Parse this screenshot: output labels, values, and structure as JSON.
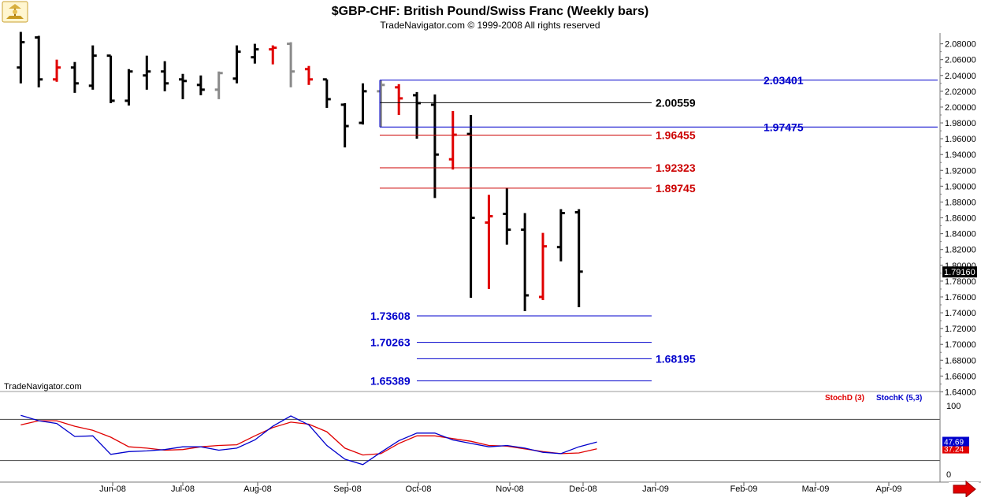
{
  "header": {
    "title": "$GBP-CHF:  British Pound/Swiss Franc  (Weekly bars)",
    "copyright": "TradeNavigator.com © 1999-2008 All rights reserved",
    "watermark": "TradeNavigator.com"
  },
  "colors": {
    "up_bar": "#000000",
    "down_bar": "#e00000",
    "neutral_bar": "#8a8a8a",
    "blue_level": "#0000cc",
    "red_level": "#cc0000",
    "black_level": "#000000",
    "stoch_d": "#e00000",
    "stoch_k": "#0000cc",
    "grid": "#e8e8e8"
  },
  "chart_data": [
    {
      "type": "ohlc",
      "title": "$GBP-CHF:  British Pound/Swiss Franc  (Weekly bars)",
      "ylim": [
        1.636,
        2.098
      ],
      "y_ticks": [
        "2.08000",
        "2.06000",
        "2.04000",
        "2.02000",
        "2.00000",
        "1.98000",
        "1.96000",
        "1.94000",
        "1.92000",
        "1.90000",
        "1.88000",
        "1.86000",
        "1.84000",
        "1.82000",
        "1.80000",
        "1.78000",
        "1.76000",
        "1.74000",
        "1.72000",
        "1.70000",
        "1.68000",
        "1.66000",
        "1.64000"
      ],
      "x_labels": [
        "Jun-08",
        "Jul-08",
        "Aug-08",
        "Sep-08",
        "Oct-08",
        "Nov-08",
        "Dec-08",
        "Jan-09",
        "Feb-09",
        "Mar-09",
        "Apr-09"
      ],
      "last_price": "1.79160",
      "bars": [
        {
          "x": 1,
          "o": 2.05,
          "h": 2.095,
          "l": 2.03,
          "c": 2.082,
          "col": "k"
        },
        {
          "x": 2,
          "o": 2.088,
          "h": 2.09,
          "l": 2.025,
          "c": 2.035,
          "col": "k"
        },
        {
          "x": 3,
          "o": 2.035,
          "h": 2.06,
          "l": 2.032,
          "c": 2.05,
          "col": "r"
        },
        {
          "x": 4,
          "o": 2.05,
          "h": 2.057,
          "l": 2.018,
          "c": 2.03,
          "col": "k"
        },
        {
          "x": 5,
          "o": 2.027,
          "h": 2.078,
          "l": 2.022,
          "c": 2.065,
          "col": "k"
        },
        {
          "x": 6,
          "o": 2.065,
          "h": 2.065,
          "l": 2.005,
          "c": 2.008,
          "col": "k"
        },
        {
          "x": 7,
          "o": 2.008,
          "h": 2.048,
          "l": 2.002,
          "c": 2.045,
          "col": "k"
        },
        {
          "x": 8,
          "o": 2.04,
          "h": 2.065,
          "l": 2.022,
          "c": 2.045,
          "col": "k"
        },
        {
          "x": 9,
          "o": 2.045,
          "h": 2.058,
          "l": 2.02,
          "c": 2.03,
          "col": "k"
        },
        {
          "x": 10,
          "o": 2.035,
          "h": 2.042,
          "l": 2.01,
          "c": 2.033,
          "col": "k"
        },
        {
          "x": 11,
          "o": 2.028,
          "h": 2.04,
          "l": 2.015,
          "c": 2.022,
          "col": "k"
        },
        {
          "x": 12,
          "o": 2.022,
          "h": 2.045,
          "l": 2.01,
          "c": 2.043,
          "col": "g"
        },
        {
          "x": 13,
          "o": 2.036,
          "h": 2.078,
          "l": 2.03,
          "c": 2.07,
          "col": "k"
        },
        {
          "x": 14,
          "o": 2.063,
          "h": 2.08,
          "l": 2.055,
          "c": 2.073,
          "col": "k"
        },
        {
          "x": 15,
          "o": 2.073,
          "h": 2.078,
          "l": 2.054,
          "c": 2.075,
          "col": "r"
        },
        {
          "x": 16,
          "o": 2.08,
          "h": 2.082,
          "l": 2.025,
          "c": 2.045,
          "col": "g"
        },
        {
          "x": 17,
          "o": 2.048,
          "h": 2.052,
          "l": 2.028,
          "c": 2.035,
          "col": "r"
        },
        {
          "x": 18,
          "o": 2.035,
          "h": 2.035,
          "l": 1.999,
          "c": 2.01,
          "col": "k"
        },
        {
          "x": 19,
          "o": 2.003,
          "h": 2.005,
          "l": 1.949,
          "c": 1.976,
          "col": "k"
        },
        {
          "x": 20,
          "o": 1.98,
          "h": 2.03,
          "l": 1.978,
          "c": 2.02,
          "col": "k"
        },
        {
          "x": 21,
          "o": 2.02,
          "h": 2.034,
          "l": 1.975,
          "c": 2.028,
          "col": "g"
        },
        {
          "x": 22,
          "o": 2.025,
          "h": 2.029,
          "l": 1.99,
          "c": 2.011,
          "col": "r"
        },
        {
          "x": 23,
          "o": 2.015,
          "h": 2.019,
          "l": 1.96,
          "c": 2.005,
          "col": "k"
        },
        {
          "x": 24,
          "o": 2.003,
          "h": 2.016,
          "l": 1.885,
          "c": 1.94,
          "col": "k"
        },
        {
          "x": 25,
          "o": 1.934,
          "h": 1.995,
          "l": 1.921,
          "c": 1.965,
          "col": "r"
        },
        {
          "x": 26,
          "o": 1.966,
          "h": 1.99,
          "l": 1.759,
          "c": 1.86,
          "col": "k"
        },
        {
          "x": 27,
          "o": 1.854,
          "h": 1.889,
          "l": 1.77,
          "c": 1.862,
          "col": "r"
        },
        {
          "x": 28,
          "o": 1.865,
          "h": 1.898,
          "l": 1.826,
          "c": 1.845,
          "col": "k"
        },
        {
          "x": 29,
          "o": 1.845,
          "h": 1.866,
          "l": 1.742,
          "c": 1.762,
          "col": "k"
        },
        {
          "x": 30,
          "o": 1.76,
          "h": 1.841,
          "l": 1.756,
          "c": 1.824,
          "col": "r"
        },
        {
          "x": 31,
          "o": 1.823,
          "h": 1.871,
          "l": 1.805,
          "c": 1.866,
          "col": "k"
        },
        {
          "x": 32,
          "o": 1.867,
          "h": 1.871,
          "l": 1.747,
          "c": 1.792,
          "col": "k"
        }
      ],
      "levels": [
        {
          "value": "2.03401",
          "color": "b",
          "x0": 21,
          "x1": "end",
          "label_x": "right"
        },
        {
          "value": "2.00559",
          "color": "k",
          "x0": 21,
          "x1": 36,
          "label_x": "mid"
        },
        {
          "value": "1.97475",
          "color": "b",
          "x0": 21,
          "x1": "end",
          "label_x": "right"
        },
        {
          "value": "1.96455",
          "color": "r",
          "x0": 21,
          "x1": 36,
          "label_x": "mid"
        },
        {
          "value": "1.92323",
          "color": "r",
          "x0": 21,
          "x1": 36,
          "label_x": "mid"
        },
        {
          "value": "1.89745",
          "color": "r",
          "x0": 21,
          "x1": 36,
          "label_x": "mid"
        },
        {
          "value": "1.73608",
          "color": "b",
          "x0": 23,
          "x1": 36,
          "label_x": "left"
        },
        {
          "value": "1.70263",
          "color": "b",
          "x0": 23,
          "x1": 36,
          "label_x": "left"
        },
        {
          "value": "1.68195",
          "color": "b",
          "x0": 23,
          "x1": 36,
          "label_x": "mid"
        },
        {
          "value": "1.65389",
          "color": "b",
          "x0": 23,
          "x1": 36,
          "label_x": "left"
        }
      ]
    },
    {
      "type": "line",
      "ylim": [
        0,
        100
      ],
      "y_ticks": [
        "100",
        "0"
      ],
      "overbought": 80,
      "oversold": 20,
      "series": [
        {
          "name": "StochD (3)",
          "color": "r",
          "last": "37.24",
          "values": [
            72,
            78,
            78,
            70,
            64,
            54,
            40,
            38,
            35,
            36,
            40,
            42,
            43,
            56,
            68,
            76,
            73,
            62,
            38,
            28,
            30,
            45,
            56,
            56,
            52,
            48,
            42,
            41,
            37,
            33,
            30,
            31,
            37
          ]
        },
        {
          "name": "StochK (5,3)",
          "color": "b",
          "last": "47.69",
          "values": [
            86,
            78,
            74,
            55,
            56,
            29,
            33,
            34,
            36,
            40,
            40,
            35,
            38,
            50,
            70,
            85,
            72,
            42,
            22,
            14,
            32,
            49,
            60,
            60,
            50,
            45,
            40,
            42,
            38,
            32,
            30,
            40,
            47
          ]
        }
      ]
    }
  ]
}
